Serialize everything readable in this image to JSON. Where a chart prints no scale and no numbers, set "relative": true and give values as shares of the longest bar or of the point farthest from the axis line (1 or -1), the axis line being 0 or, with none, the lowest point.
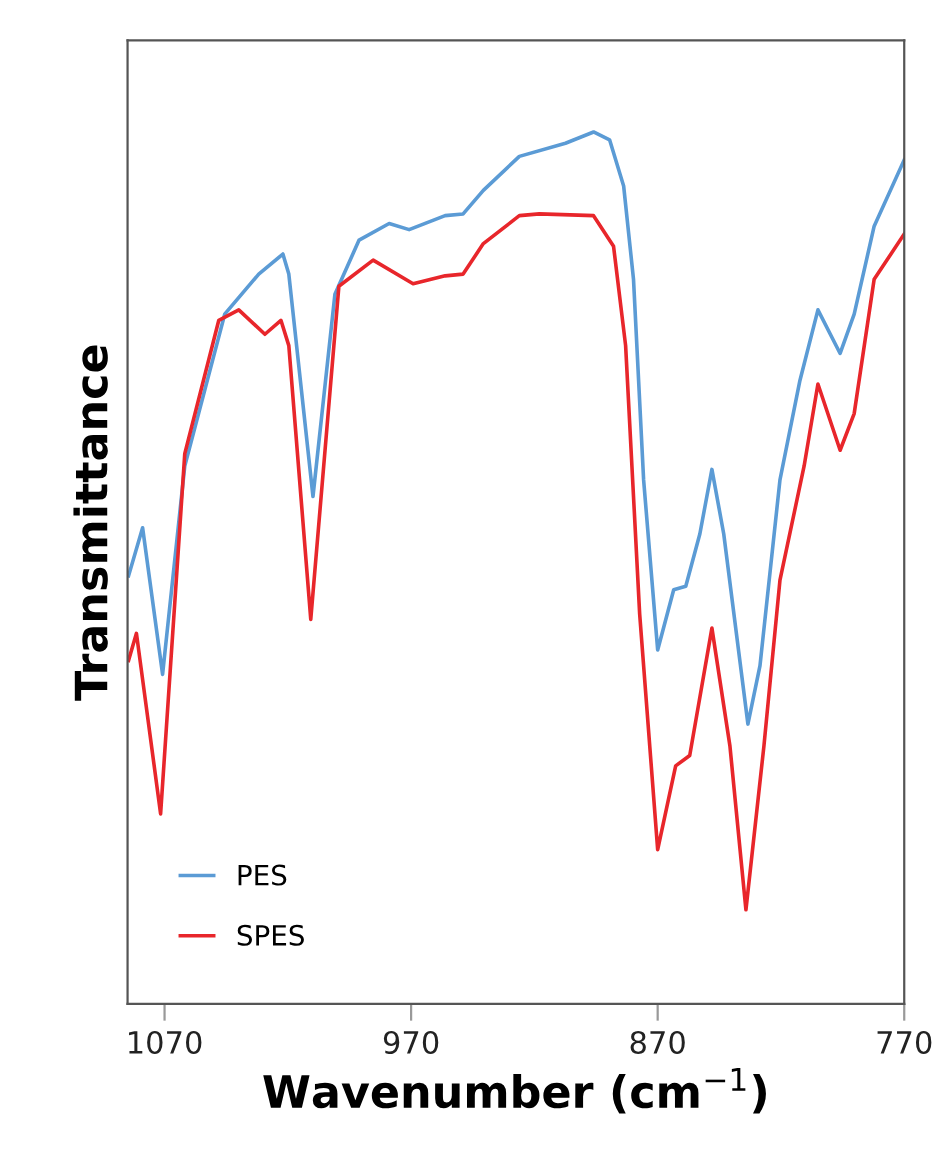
{
  "chart_data": {
    "type": "line",
    "xlabel": "Wavenumber (cm$^{−1}$)",
    "ylabel": "Transmittance",
    "relative": true,
    "xlim": [
      1085,
      770
    ],
    "xticks": [
      1070,
      970,
      870,
      770
    ],
    "tick_labels": "x",
    "legend": "bottom left",
    "series": [
      {
        "name": "PES",
        "color": "#5b9bd5",
        "x": [
          1084.6,
          1078.9,
          1070.8,
          1061.8,
          1045.6,
          1031.8,
          1022.0,
          1019.6,
          1009.8,
          1000.9,
          991.1,
          978.9,
          970.8,
          956.2,
          948.9,
          940.7,
          926.1,
          907.4,
          896.0,
          889.5,
          883.8,
          879.8,
          875.7,
          870.0,
          863.5,
          858.6,
          852.9,
          848.0,
          843.2,
          833.4,
          828.5,
          820.4,
          812.3,
          805.0,
          796.0,
          790.3,
          782.2,
          770.0
        ],
        "values": [
          0.491,
          0.546,
          0.378,
          0.617,
          0.791,
          0.837,
          0.86,
          0.837,
          0.582,
          0.814,
          0.876,
          0.895,
          0.888,
          0.904,
          0.906,
          0.933,
          0.972,
          0.987,
          1,
          0.991,
          0.938,
          0.831,
          0.601,
          0.406,
          0.475,
          0.479,
          0.539,
          0.613,
          0.539,
          0.321,
          0.388,
          0.601,
          0.715,
          0.796,
          0.746,
          0.791,
          0.892,
          0.968
        ]
      },
      {
        "name": "SPES",
        "color": "#e8262b",
        "x": [
          1084.6,
          1081.4,
          1071.6,
          1061.8,
          1048.0,
          1039.9,
          1029.3,
          1022.8,
          1019.6,
          1010.7,
          999.3,
          985.4,
          969.2,
          956.2,
          948.9,
          940.7,
          926.1,
          918.0,
          896.0,
          887.9,
          883.0,
          877.3,
          870.0,
          862.7,
          857.0,
          848.0,
          840.7,
          834.2,
          826.9,
          820.4,
          810.6,
          805.0,
          796.0,
          790.3,
          782.2,
          770.0
        ],
        "values": [
          0.394,
          0.425,
          0.218,
          0.631,
          0.784,
          0.796,
          0.768,
          0.784,
          0.755,
          0.441,
          0.823,
          0.853,
          0.826,
          0.835,
          0.837,
          0.872,
          0.904,
          0.906,
          0.904,
          0.869,
          0.755,
          0.447,
          0.177,
          0.273,
          0.285,
          0.431,
          0.296,
          0.108,
          0.296,
          0.486,
          0.617,
          0.711,
          0.635,
          0.677,
          0.831,
          0.883
        ]
      }
    ]
  }
}
